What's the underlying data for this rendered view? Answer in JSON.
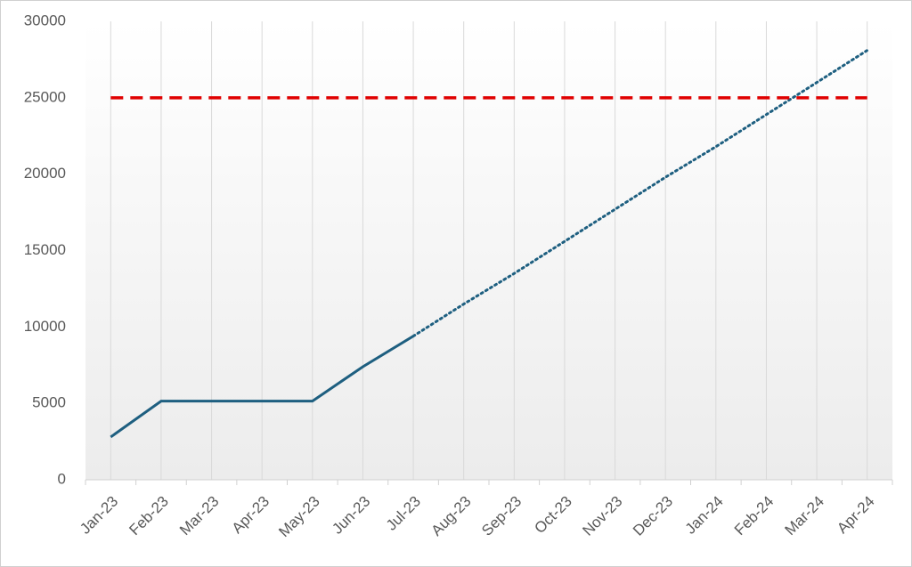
{
  "chart_data": {
    "type": "line",
    "categories": [
      "Jan-23",
      "Feb-23",
      "Mar-23",
      "Apr-23",
      "May-23",
      "Jun-23",
      "Jul-23",
      "Aug-23",
      "Sep-23",
      "Oct-23",
      "Nov-23",
      "Dec-23",
      "Jan-24",
      "Feb-24",
      "Mar-24",
      "Apr-24"
    ],
    "series": [
      {
        "color": "#1e5f80",
        "style": "solid",
        "values": [
          2800,
          5150,
          5150,
          5150,
          5150,
          7400,
          9400,
          null,
          null,
          null,
          null,
          null,
          null,
          null,
          null,
          null
        ]
      },
      {
        "color": "#1e5f80",
        "style": "dotted",
        "values": [
          null,
          null,
          null,
          null,
          null,
          null,
          9400,
          11500,
          13500,
          15600,
          17700,
          19800,
          21800,
          23900,
          26000,
          28100
        ]
      },
      {
        "color": "#e00000",
        "style": "dashed",
        "values": [
          25000,
          25000,
          25000,
          25000,
          25000,
          25000,
          25000,
          25000,
          25000,
          25000,
          25000,
          25000,
          25000,
          25000,
          25000,
          25000
        ]
      }
    ],
    "ylim": [
      0,
      30000
    ],
    "yticks": [
      0,
      5000,
      10000,
      15000,
      20000,
      25000,
      30000
    ],
    "grid": true
  }
}
